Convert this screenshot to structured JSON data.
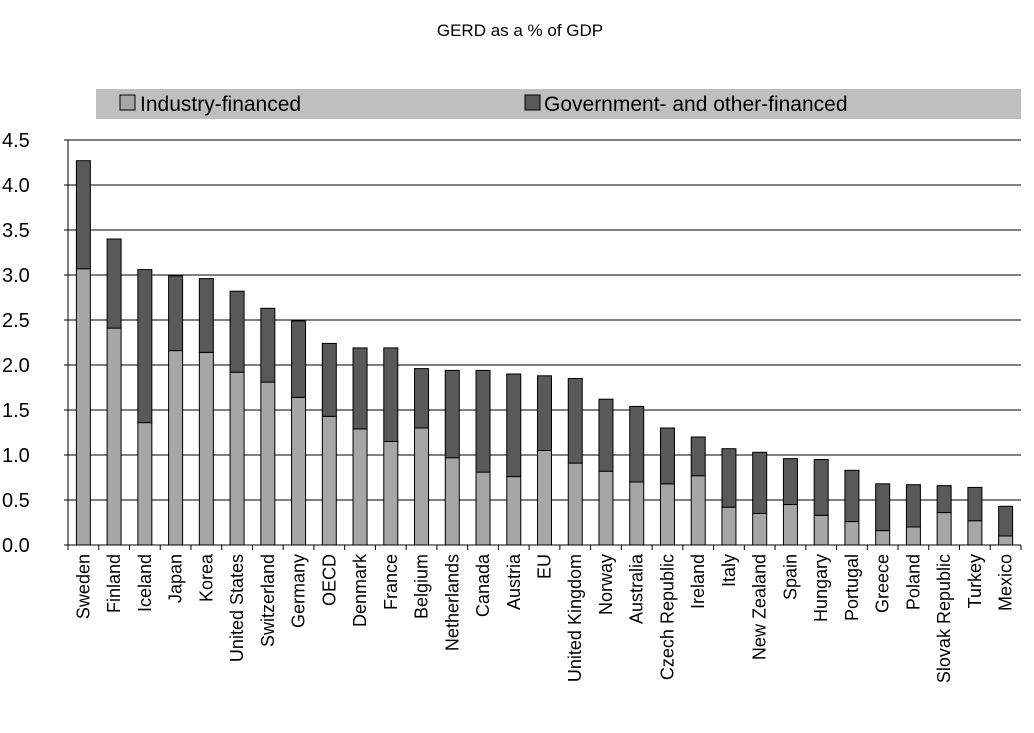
{
  "chart_data": {
    "type": "bar",
    "stacked": true,
    "title": "GERD as a % of GDP",
    "xlabel": "",
    "ylabel": "",
    "ylim": [
      0,
      4.5
    ],
    "yticks": [
      "0.0",
      "0.5",
      "1.0",
      "1.5",
      "2.0",
      "2.5",
      "3.0",
      "3.5",
      "4.0",
      "4.5"
    ],
    "grid": true,
    "legend_position": "top",
    "categories": [
      "Sweden",
      "Finland",
      "Iceland",
      "Japan",
      "Korea",
      "United States",
      "Switzerland",
      "Germany",
      "OECD",
      "Denmark",
      "France",
      "Belgium",
      "Netherlands",
      "Canada",
      "Austria",
      "EU",
      "United Kingdom",
      "Norway",
      "Australia",
      "Czech Republic",
      "Ireland",
      "Italy",
      "New Zealand",
      "Spain",
      "Hungary",
      "Portugal",
      "Greece",
      "Poland",
      "Slovak Republic",
      "Turkey",
      "Mexico"
    ],
    "series": [
      {
        "name": "Industry-financed",
        "color": "#a6a6a6",
        "values": [
          3.07,
          2.41,
          1.36,
          2.16,
          2.14,
          1.92,
          1.81,
          1.64,
          1.43,
          1.29,
          1.15,
          1.3,
          0.97,
          0.81,
          0.76,
          1.05,
          0.91,
          0.82,
          0.7,
          0.68,
          0.77,
          0.42,
          0.35,
          0.45,
          0.33,
          0.26,
          0.16,
          0.2,
          0.36,
          0.27,
          0.1
        ]
      },
      {
        "name": "Government- and other-financed",
        "color": "#595959",
        "values": [
          1.2,
          0.99,
          1.7,
          0.83,
          0.82,
          0.9,
          0.82,
          0.85,
          0.81,
          0.9,
          1.04,
          0.66,
          0.97,
          1.13,
          1.14,
          0.83,
          0.94,
          0.8,
          0.84,
          0.62,
          0.43,
          0.65,
          0.68,
          0.51,
          0.62,
          0.57,
          0.52,
          0.47,
          0.3,
          0.37,
          0.33
        ]
      }
    ]
  }
}
